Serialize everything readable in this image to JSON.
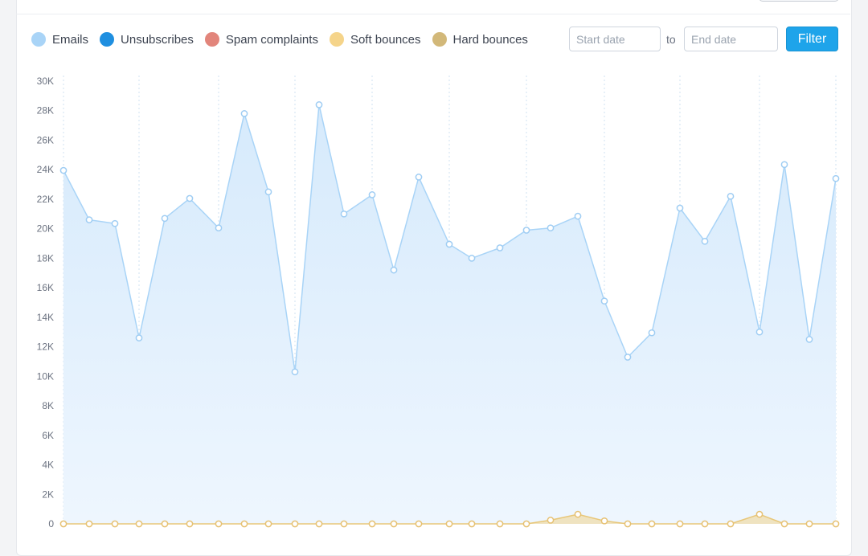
{
  "legend": [
    {
      "label": "Emails",
      "color": "#a9d4f7"
    },
    {
      "label": "Unsubscribes",
      "color": "#1f8fe0"
    },
    {
      "label": "Spam complaints",
      "color": "#e2857b"
    },
    {
      "label": "Soft bounces",
      "color": "#f5d48a"
    },
    {
      "label": "Hard bounces",
      "color": "#d2b879"
    }
  ],
  "filter": {
    "start_placeholder": "Start date",
    "to_label": "to",
    "end_placeholder": "End date",
    "button_label": "Filter"
  },
  "colors": {
    "emails_line": "#a9d4f7",
    "emails_fill": "#d9ecfd",
    "bounce_line": "#e8c779",
    "bounce_fill": "#efe3c0",
    "grid": "#cfe0f0",
    "accent": "#1ea4ea"
  },
  "chart_data": {
    "type": "area",
    "y_ticks": [
      "0",
      "2K",
      "4K",
      "6K",
      "8K",
      "10K",
      "12K",
      "14K",
      "16K",
      "18K",
      "20K",
      "22K",
      "24K",
      "26K",
      "28K",
      "30K"
    ],
    "ylim": [
      0,
      30000
    ],
    "grid": "vertical-dotted",
    "legend_position": "top-left",
    "series": [
      {
        "name": "Emails",
        "values": [
          23950,
          20600,
          20350,
          12600,
          20700,
          22050,
          20050,
          27800,
          22500,
          10300,
          28400,
          21000,
          22300,
          17200,
          23500,
          18950,
          18000,
          18700,
          19900,
          20050,
          20850,
          15100,
          11300,
          12950,
          21400,
          19150,
          22200,
          13000,
          24350,
          12500,
          23400
        ]
      },
      {
        "name": "Soft bounces",
        "values": [
          0,
          0,
          0,
          0,
          0,
          0,
          0,
          0,
          0,
          0,
          0,
          0,
          0,
          0,
          0,
          0,
          0,
          0,
          0,
          250,
          650,
          200,
          0,
          0,
          0,
          0,
          0,
          650,
          0,
          0,
          0
        ]
      }
    ]
  }
}
